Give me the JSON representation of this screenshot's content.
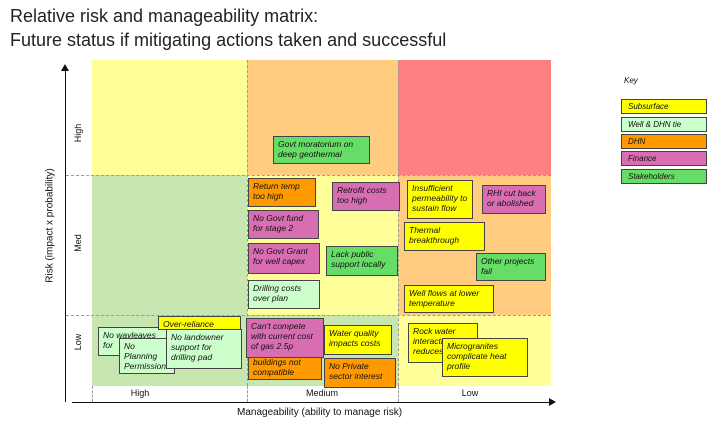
{
  "title": {
    "line1": "Relative risk and manageability matrix:",
    "line2": "Future status if mitigating actions taken and successful"
  },
  "axes": {
    "y_title": "Risk  (impact x probability)",
    "x_title": "Manageability (ability to manage risk)",
    "row_labels": [
      "High",
      "Med",
      "Low"
    ],
    "col_labels": [
      "High",
      "Medium",
      "Low"
    ]
  },
  "grid_colors": {
    "high_high": "#ffff99",
    "high_medium": "#ffcc80",
    "high_low": "#ff8080",
    "med_high": "#c8e6b0",
    "med_medium": "#ffff99",
    "med_low": "#ffcc80",
    "low_high": "#c8e6b0",
    "low_medium": "#c8e6b0",
    "low_low": "#ffff99"
  },
  "key": {
    "title": "Key",
    "items": [
      {
        "label": "Subsurface",
        "color": "#ffff00"
      },
      {
        "label": "Well & DHN tie",
        "color": "#ccffcc"
      },
      {
        "label": "DHN",
        "color": "#ff9900"
      },
      {
        "label": "Finance",
        "color": "#d86db1"
      },
      {
        "label": "Stakeholders",
        "color": "#66dd66"
      }
    ]
  },
  "risks": {
    "govt_moratorium": "Govt moratorium on deep geothermal",
    "return_temp": "Return temp too high",
    "retrofit_costs": "Retrofit costs too high",
    "insufficient_permeability": "Insufficient permeability to sustain flow",
    "rhi_cut": "RHI cut back or abolished",
    "no_govt_fund": "No Govt fund for stage 2",
    "thermal_breakthrough": "Thermal breakthrough",
    "no_govt_grant": "No Govt Grant for well capex",
    "lack_public_support": "Lack public support locally",
    "other_projects": "Other projects fail",
    "drilling_costs": "Drilling costs over plan",
    "well_flows": "Well flows  at lower temperature",
    "no_wayleaves": "No wayleaves for",
    "no_planning": "No Planning Permission tie in pipeline",
    "over_reliance": "Over-reliance",
    "no_landowner": "No landowner support for drilling pad",
    "cant_compete": "Can't compete with  current cost of gas 2.5p",
    "buildings_not": "buildings not compatible",
    "water_quality": "Water quality impacts costs",
    "no_private": "No Private sector interest",
    "rock_water": "Rock water interaction reduces",
    "microgranites": "Microgranites complicate heat profile"
  }
}
